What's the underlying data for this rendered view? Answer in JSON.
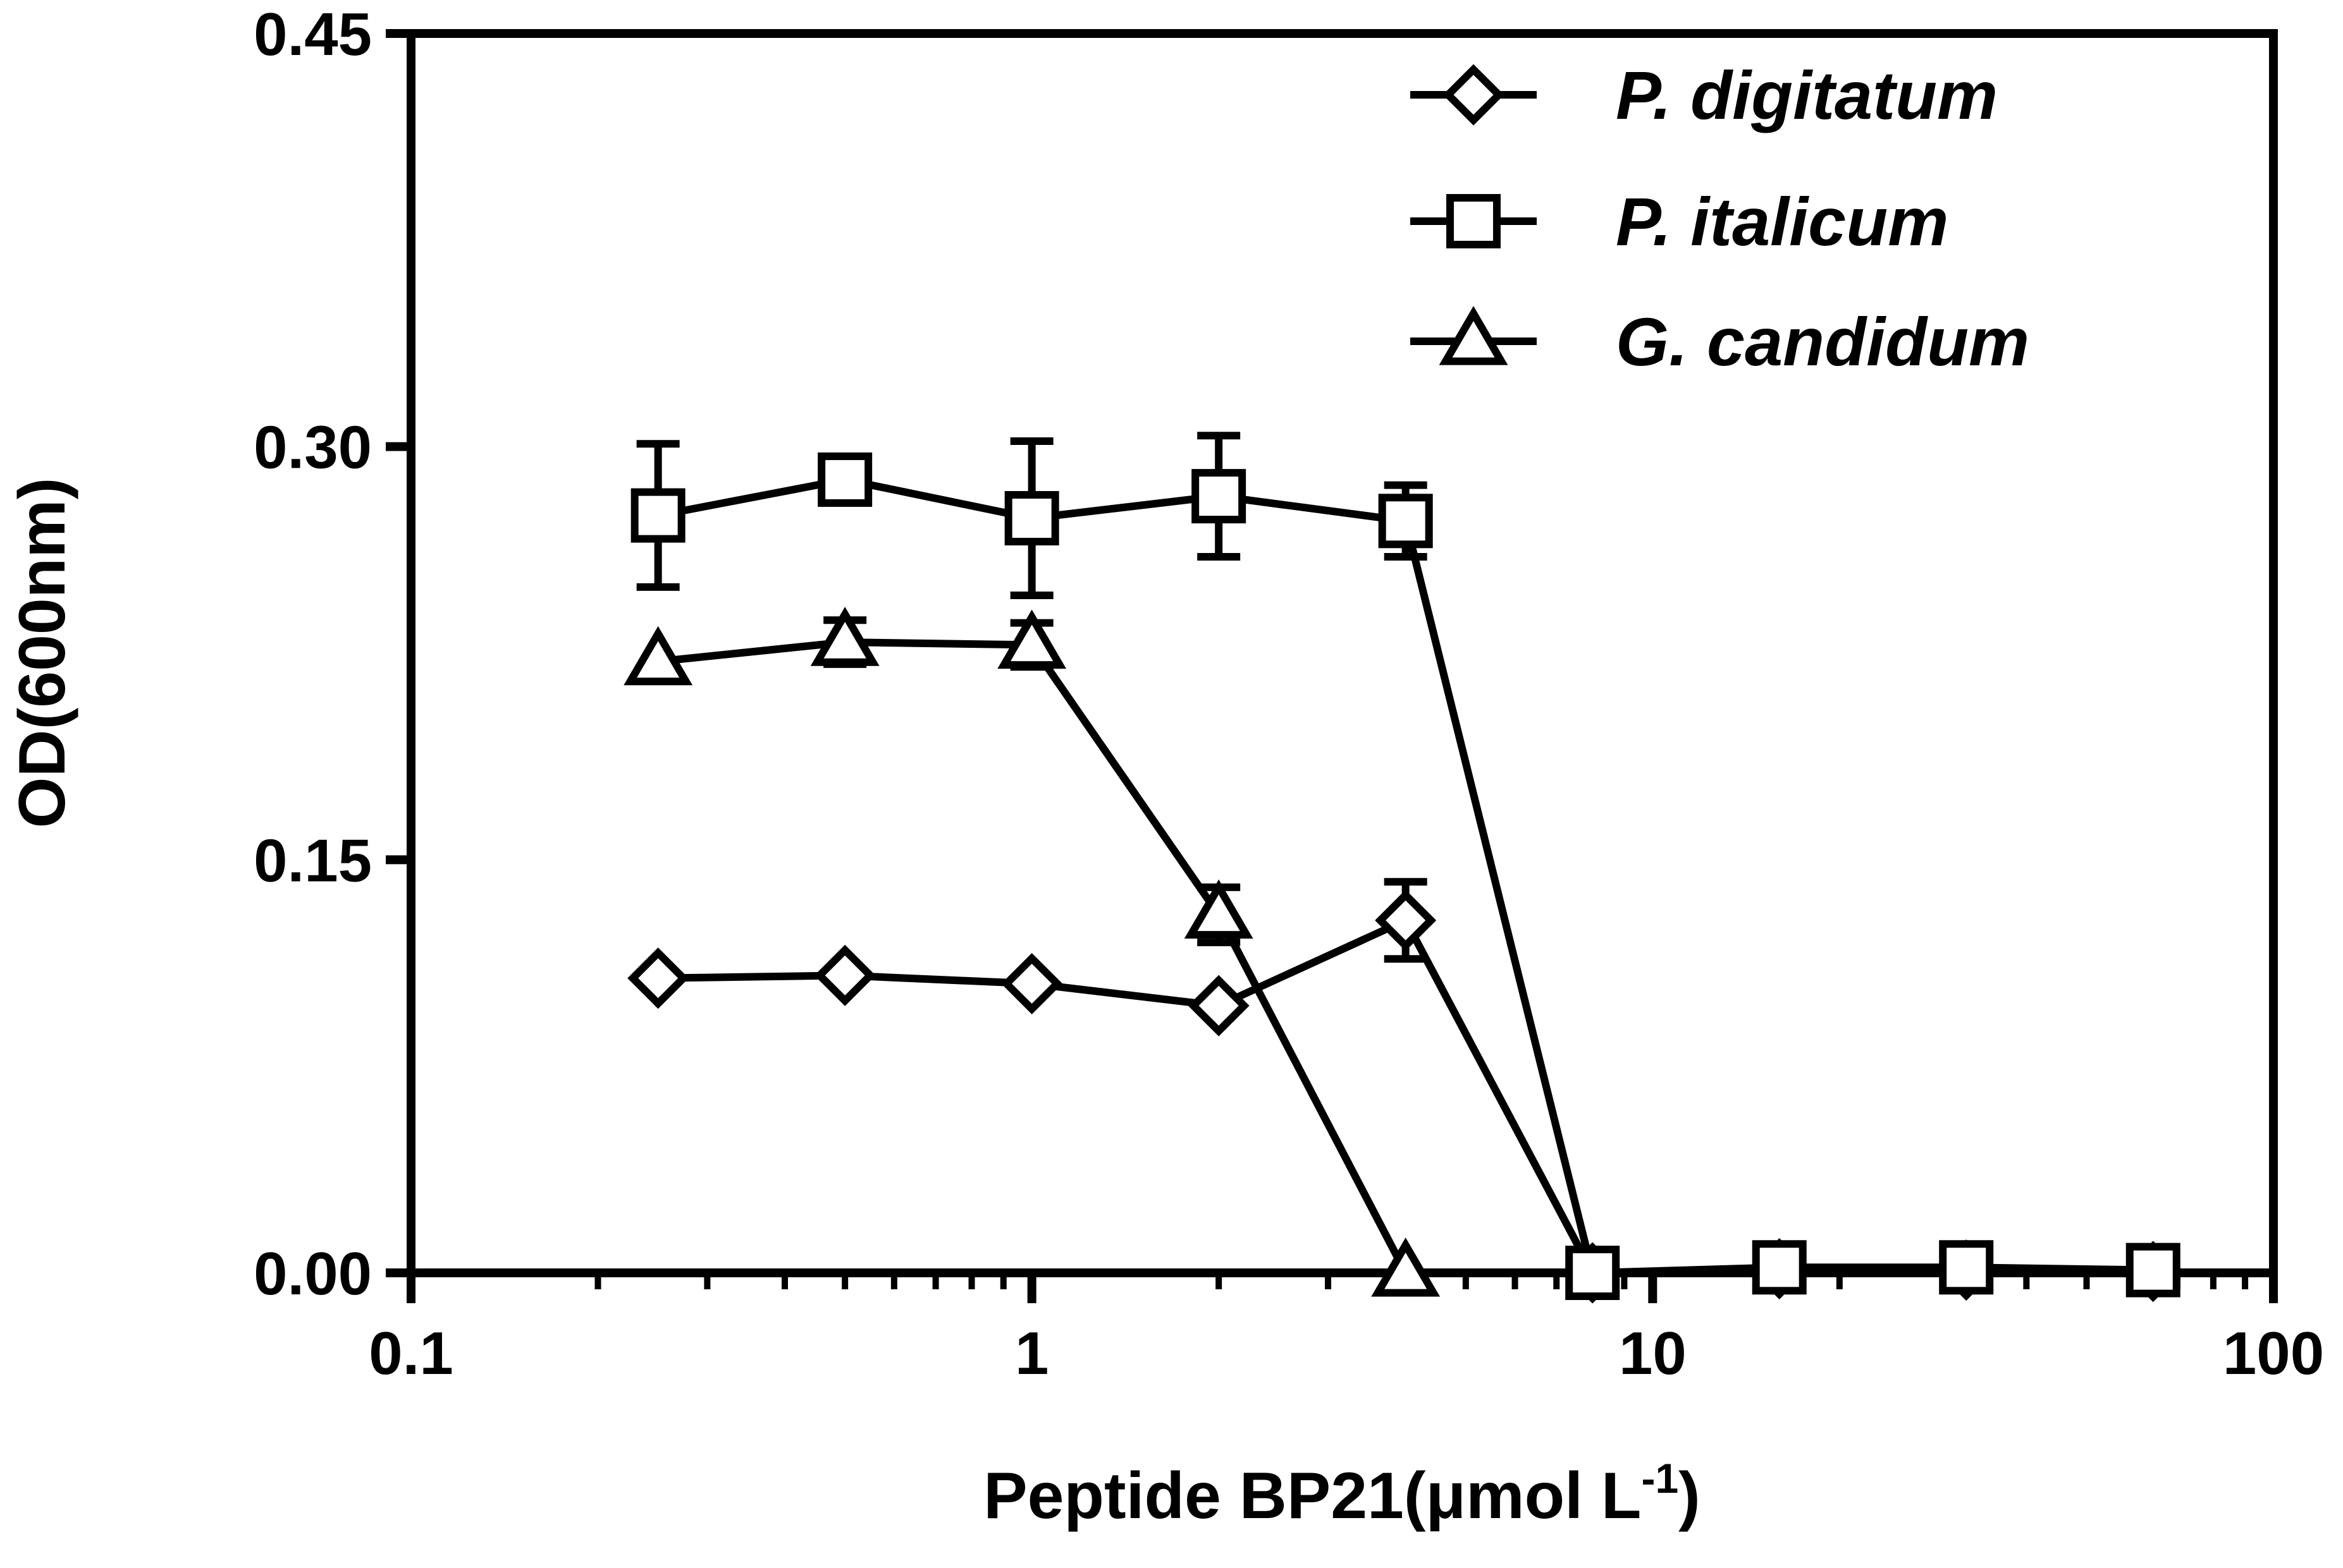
{
  "chart_data": {
    "type": "line",
    "xscale": "log",
    "xlim": [
      0.1,
      100
    ],
    "ylim": [
      0,
      0.45
    ],
    "x_ticks": [
      "0.1",
      "1",
      "10",
      "100"
    ],
    "y_ticks": [
      "0.00",
      "0.15",
      "0.30",
      "0.45"
    ],
    "xlabel": "Peptide BP21(μmol L",
    "xlabel_superscript": "-1",
    "xlabel_suffix": ")",
    "ylabel": "OD(600nm)",
    "legend_position": "top-right",
    "colors": {
      "line": "#000000",
      "background": "#ffffff"
    },
    "series": [
      {
        "name": "P. digitatum",
        "marker": "diamond",
        "x": [
          0.25,
          0.5,
          1,
          2,
          4,
          8,
          16,
          32,
          64
        ],
        "y": [
          0.107,
          0.108,
          0.105,
          0.097,
          0.128,
          0.0,
          0.0015,
          0.001,
          0.0005
        ],
        "err": [
          0,
          0,
          0,
          0,
          0.014,
          0,
          0,
          0,
          0
        ]
      },
      {
        "name": "P. italicum",
        "marker": "square",
        "x": [
          0.25,
          0.5,
          1,
          2,
          4,
          8,
          16,
          32,
          64
        ],
        "y": [
          0.275,
          0.288,
          0.274,
          0.282,
          0.273,
          0.0,
          0.002,
          0.002,
          0.001
        ],
        "err": [
          0.026,
          0.005,
          0.028,
          0.022,
          0.013,
          0,
          0,
          0,
          0
        ]
      },
      {
        "name": "G.  candidum",
        "marker": "triangle",
        "x": [
          0.25,
          0.5,
          1,
          2,
          4
        ],
        "y": [
          0.222,
          0.229,
          0.228,
          0.13,
          0.0
        ],
        "err": [
          0,
          0.008,
          0.008,
          0.01,
          0
        ]
      }
    ]
  }
}
